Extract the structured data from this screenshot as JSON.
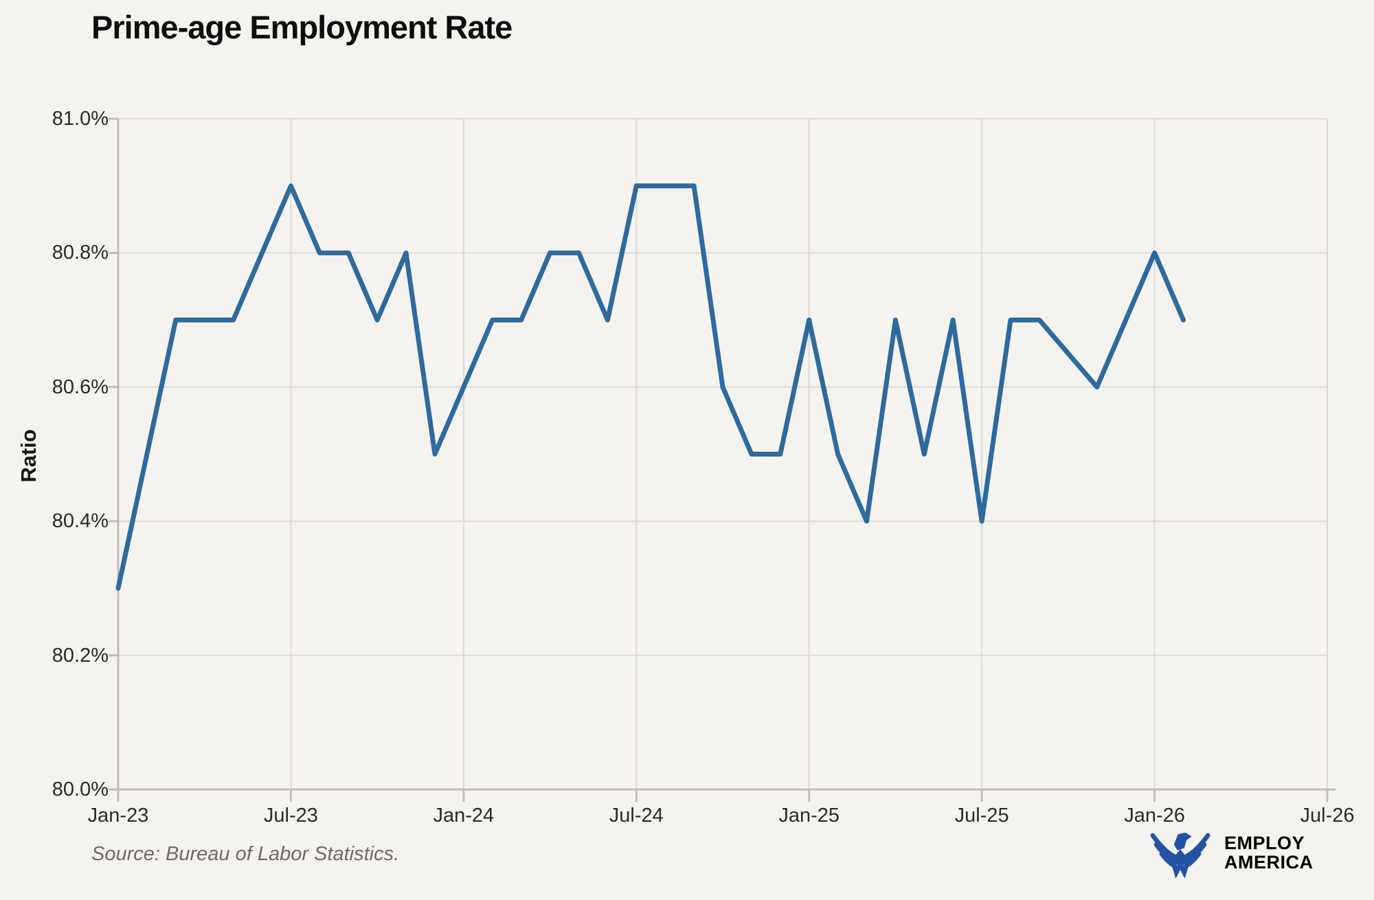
{
  "page": {
    "background": "#f5f3f0"
  },
  "chart_data": {
    "type": "line",
    "title": "Prime-age Employment Rate",
    "ylabel": "Ratio",
    "xlabel": "",
    "grid": true,
    "legend": "none",
    "line_color": "#2d6a9e",
    "ylim": [
      80.0,
      81.0
    ],
    "x_range_months": 42,
    "x": [
      "Jan-23",
      "Feb-23",
      "Mar-23",
      "Apr-23",
      "May-23",
      "Jun-23",
      "Jul-23",
      "Aug-23",
      "Sep-23",
      "Oct-23",
      "Nov-23",
      "Dec-23",
      "Jan-24",
      "Feb-24",
      "Mar-24",
      "Apr-24",
      "May-24",
      "Jun-24",
      "Jul-24",
      "Aug-24",
      "Sep-24",
      "Oct-24",
      "Nov-24",
      "Dec-24",
      "Jan-25",
      "Feb-25",
      "Mar-25",
      "Apr-25",
      "May-25",
      "Jun-25",
      "Jul-25",
      "Aug-25",
      "Sep-25",
      "Oct-25",
      "Nov-25",
      "Dec-25",
      "Jan-26",
      "Feb-26"
    ],
    "values": [
      80.3,
      80.5,
      80.7,
      80.7,
      80.7,
      80.8,
      80.9,
      80.8,
      80.8,
      80.7,
      80.8,
      80.5,
      80.6,
      80.7,
      80.7,
      80.8,
      80.8,
      80.7,
      80.9,
      80.9,
      80.9,
      80.6,
      80.5,
      80.5,
      80.7,
      80.5,
      80.4,
      80.7,
      80.5,
      80.7,
      80.4,
      80.7,
      80.7,
      null,
      80.6,
      80.7,
      80.8,
      80.7
    ],
    "y_ticks": [
      {
        "label": "81.0%",
        "value": 81.0
      },
      {
        "label": "80.8%",
        "value": 80.8
      },
      {
        "label": "80.6%",
        "value": 80.6
      },
      {
        "label": "80.4%",
        "value": 80.4
      },
      {
        "label": "80.2%",
        "value": 80.2
      },
      {
        "label": "80.0%",
        "value": 80.0
      }
    ],
    "x_ticks": [
      {
        "label": "Jan-23",
        "month": 0
      },
      {
        "label": "Jul-23",
        "month": 6
      },
      {
        "label": "Jan-24",
        "month": 12
      },
      {
        "label": "Jul-24",
        "month": 18
      },
      {
        "label": "Jan-25",
        "month": 24
      },
      {
        "label": "Jul-25",
        "month": 30
      },
      {
        "label": "Jan-26",
        "month": 36
      },
      {
        "label": "Jul-26",
        "month": 42
      }
    ]
  },
  "footer": {
    "source": "Source: Bureau of Labor Statistics.",
    "logo": {
      "line1": "EMPLOY",
      "line2": "AMERICA",
      "color": "#2353a5"
    }
  }
}
